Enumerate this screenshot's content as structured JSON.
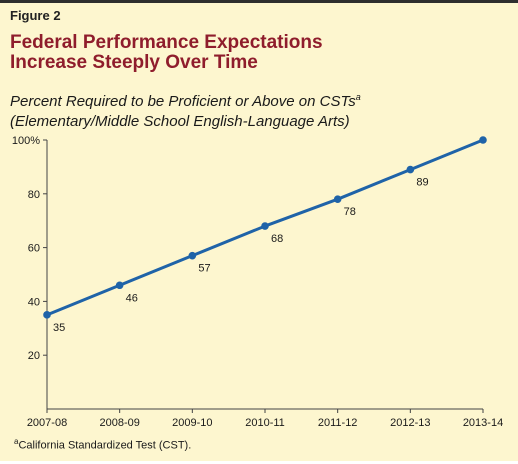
{
  "figure": {
    "label": "Figure 2",
    "title_line1": "Federal Performance Expectations",
    "title_line2": "Increase Steeply Over Time",
    "subtitle_line1": "Percent Required to be Proficient or Above on CSTs",
    "subtitle_line1_marker": "a",
    "subtitle_line2": "(Elementary/Middle School English-Language Arts)",
    "footnote_marker": "a",
    "footnote_text": "California Standardized Test (CST)."
  },
  "colors": {
    "background": "#fdf6cf",
    "title": "#8f1d2c",
    "line": "#1f63a8",
    "axis": "#444444"
  },
  "chart_data": {
    "type": "line",
    "categories": [
      "2007-08",
      "2008-09",
      "2009-10",
      "2010-11",
      "2011-12",
      "2012-13",
      "2013-14"
    ],
    "series": [
      {
        "values": [
          35,
          46,
          57,
          68,
          78,
          89,
          100
        ]
      }
    ],
    "data_labels": [
      "35",
      "46",
      "57",
      "68",
      "78",
      "89",
      ""
    ],
    "ylim": [
      0,
      100
    ],
    "yticks": [
      20,
      40,
      60,
      80,
      100
    ],
    "ytick_labels": [
      "20",
      "40",
      "60",
      "80",
      "100%"
    ],
    "grid": false,
    "legend": "none"
  }
}
